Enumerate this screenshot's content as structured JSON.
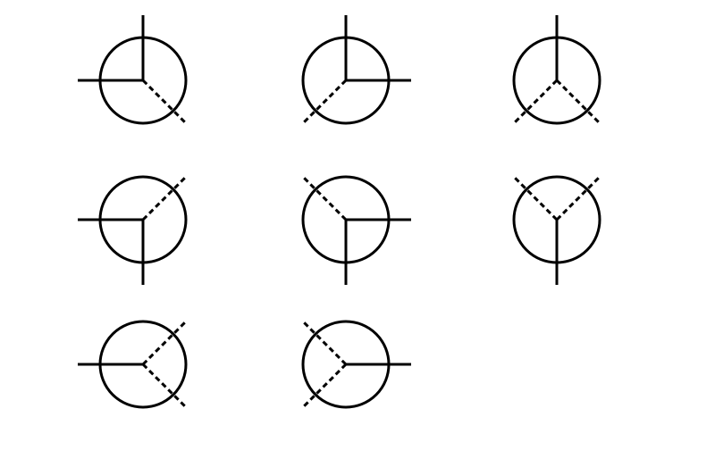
{
  "diagram": {
    "stroke_color": "#000000",
    "background_color": "#ffffff",
    "symbols": [
      {
        "name": "symbol-1",
        "solid": [
          "up",
          "left"
        ],
        "dashed": [
          "down-right"
        ]
      },
      {
        "name": "symbol-2",
        "solid": [
          "up",
          "right"
        ],
        "dashed": [
          "down-left"
        ]
      },
      {
        "name": "symbol-3",
        "solid": [
          "up"
        ],
        "dashed": [
          "down-left",
          "down-right"
        ]
      },
      {
        "name": "symbol-4",
        "solid": [
          "left",
          "down"
        ],
        "dashed": [
          "up-right"
        ]
      },
      {
        "name": "symbol-5",
        "solid": [
          "right",
          "down"
        ],
        "dashed": [
          "up-left"
        ]
      },
      {
        "name": "symbol-6",
        "solid": [
          "down"
        ],
        "dashed": [
          "up-left",
          "up-right"
        ]
      },
      {
        "name": "symbol-7",
        "solid": [
          "left"
        ],
        "dashed": [
          "up-right",
          "down-right"
        ]
      },
      {
        "name": "symbol-8",
        "solid": [
          "right"
        ],
        "dashed": [
          "up-left",
          "down-left"
        ]
      }
    ]
  }
}
